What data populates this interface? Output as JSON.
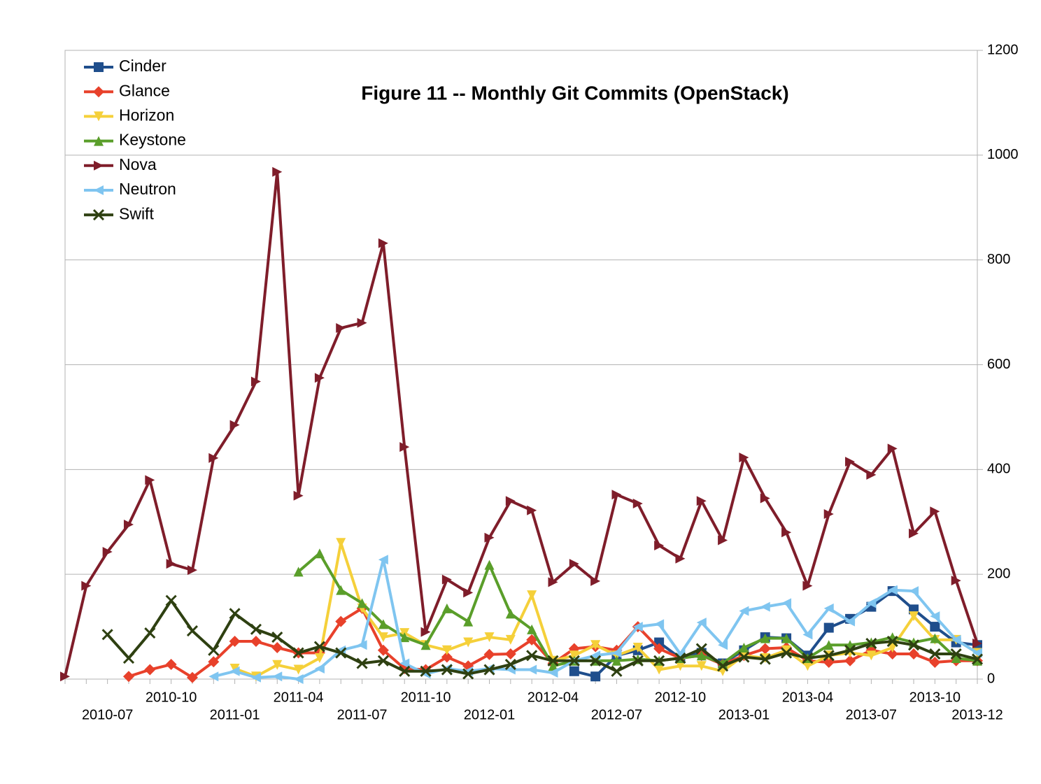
{
  "chart_data": {
    "type": "line",
    "title": "Figure 11 -- Monthly Git Commits (OpenStack)",
    "categories": [
      null,
      null,
      "2010-07",
      null,
      null,
      "2010-10",
      null,
      null,
      "2011-01",
      null,
      null,
      "2011-04",
      null,
      null,
      "2011-07",
      null,
      null,
      "2011-10",
      null,
      null,
      "2012-01",
      null,
      null,
      "2012-04",
      null,
      null,
      "2012-07",
      null,
      null,
      "2012-10",
      null,
      null,
      "2013-01",
      null,
      null,
      "2013-04",
      null,
      null,
      "2013-07",
      null,
      null,
      "2013-10",
      null,
      "2013-12"
    ],
    "ylim": [
      0,
      1200
    ],
    "yticks": [
      0,
      200,
      400,
      600,
      800,
      1000,
      1200
    ],
    "grid": true,
    "y_axis_side": "right",
    "legend": "upper-left",
    "series": [
      {
        "name": "Cinder",
        "color": "#1f4e8c",
        "marker": "square",
        "values": [
          null,
          null,
          null,
          null,
          null,
          null,
          null,
          null,
          null,
          null,
          null,
          null,
          null,
          null,
          null,
          null,
          null,
          null,
          null,
          null,
          null,
          null,
          null,
          null,
          15,
          5,
          45,
          55,
          70,
          40,
          50,
          30,
          55,
          80,
          78,
          45,
          98,
          115,
          138,
          168,
          133,
          100,
          70,
          65
        ]
      },
      {
        "name": "Glance",
        "color": "#e8412b",
        "marker": "diamond",
        "values": [
          null,
          null,
          null,
          5,
          18,
          28,
          3,
          33,
          72,
          72,
          60,
          50,
          50,
          110,
          135,
          55,
          20,
          18,
          42,
          25,
          47,
          48,
          75,
          30,
          58,
          62,
          55,
          100,
          58,
          40,
          45,
          28,
          45,
          58,
          60,
          35,
          32,
          35,
          55,
          48,
          48,
          32,
          35,
          35
        ]
      },
      {
        "name": "Horizon",
        "color": "#f5d03a",
        "marker": "tri-down",
        "values": [
          null,
          null,
          null,
          null,
          null,
          null,
          null,
          null,
          20,
          5,
          27,
          18,
          40,
          260,
          135,
          80,
          88,
          65,
          55,
          70,
          80,
          75,
          160,
          35,
          45,
          65,
          45,
          60,
          18,
          25,
          25,
          15,
          45,
          40,
          55,
          25,
          45,
          50,
          45,
          60,
          120,
          75,
          75,
          50
        ]
      },
      {
        "name": "Keystone",
        "color": "#5a9e2a",
        "marker": "tri-up",
        "values": [
          null,
          null,
          null,
          null,
          null,
          null,
          null,
          null,
          null,
          null,
          null,
          205,
          240,
          170,
          145,
          105,
          80,
          65,
          135,
          110,
          218,
          125,
          95,
          25,
          35,
          35,
          35,
          38,
          35,
          40,
          45,
          30,
          60,
          78,
          78,
          40,
          65,
          65,
          70,
          80,
          70,
          78,
          40,
          35
        ]
      },
      {
        "name": "Nova",
        "color": "#7f1d2a",
        "marker": "tri-right",
        "values": [
          5,
          178,
          243,
          295,
          380,
          220,
          208,
          422,
          485,
          568,
          968,
          350,
          575,
          670,
          680,
          832,
          443,
          90,
          190,
          165,
          270,
          340,
          322,
          185,
          220,
          187,
          352,
          335,
          255,
          230,
          340,
          265,
          423,
          345,
          280,
          178,
          315,
          415,
          390,
          440,
          278,
          320,
          188,
          68
        ]
      },
      {
        "name": "Neutron",
        "color": "#7fc5f0",
        "marker": "tri-left",
        "values": [
          null,
          null,
          null,
          null,
          null,
          null,
          null,
          5,
          15,
          3,
          5,
          0,
          20,
          55,
          65,
          228,
          30,
          10,
          20,
          15,
          20,
          18,
          18,
          12,
          35,
          45,
          50,
          100,
          105,
          48,
          108,
          65,
          130,
          138,
          145,
          85,
          135,
          110,
          145,
          170,
          168,
          120,
          75,
          50
        ]
      },
      {
        "name": "Swift",
        "color": "#2e4011",
        "marker": "x",
        "values": [
          null,
          null,
          85,
          40,
          88,
          150,
          92,
          55,
          125,
          95,
          80,
          50,
          62,
          50,
          30,
          35,
          15,
          15,
          18,
          10,
          18,
          28,
          45,
          35,
          35,
          35,
          15,
          35,
          35,
          40,
          58,
          25,
          42,
          38,
          50,
          40,
          45,
          55,
          68,
          72,
          65,
          48,
          48,
          38
        ]
      }
    ]
  }
}
